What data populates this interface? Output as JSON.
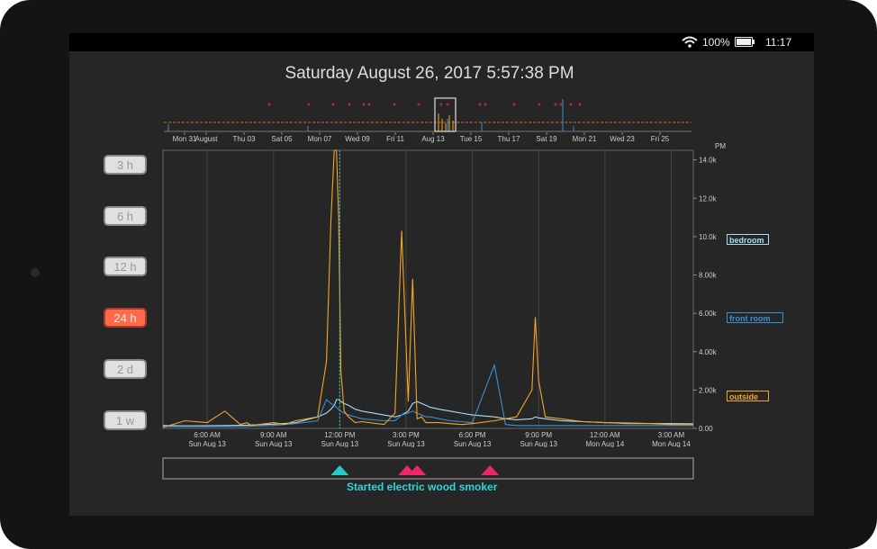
{
  "status_bar": {
    "battery": "100%",
    "battery_level": 1.0,
    "time": "11:17"
  },
  "datetime": "Saturday August 26, 2017   5:57:38 PM",
  "range_buttons": [
    {
      "label": "3 h",
      "active": false
    },
    {
      "label": "6 h",
      "active": false
    },
    {
      "label": "12 h",
      "active": false
    },
    {
      "label": "24 h",
      "active": true
    },
    {
      "label": "2 d",
      "active": false
    },
    {
      "label": "1 w",
      "active": false
    }
  ],
  "overview": {
    "tick_labels": [
      "Mon 31",
      "August",
      "Thu 03",
      "Sat 05",
      "Mon 07",
      "Wed 09",
      "Fri 11",
      "Aug 13",
      "Tue 15",
      "Thu 17",
      "Sat 19",
      "Mon 21",
      "Wed 23",
      "Fri 25"
    ],
    "event_marker": "*"
  },
  "chart_data": {
    "type": "line",
    "y_unit": "PM",
    "ylim": [
      0,
      14500
    ],
    "y_ticks": [
      "0.00",
      "2.00k",
      "4.00k",
      "6.00k",
      "8.00k",
      "10.0k",
      "12.0k",
      "14.0k"
    ],
    "x_ticks": [
      {
        "time": "6:00 AM",
        "date": "Sun Aug 13"
      },
      {
        "time": "9:00 AM",
        "date": "Sun Aug 13"
      },
      {
        "time": "12:00 PM",
        "date": "Sun Aug 13"
      },
      {
        "time": "3:00 PM",
        "date": "Sun Aug 13"
      },
      {
        "time": "6:00 PM",
        "date": "Sun Aug 13"
      },
      {
        "time": "9:00 PM",
        "date": "Sun Aug 13"
      },
      {
        "time": "12:00 AM",
        "date": "Mon Aug 14"
      },
      {
        "time": "3:00 AM",
        "date": "Mon Aug 14"
      }
    ],
    "x_hours": [
      4.0,
      5.0,
      6.0,
      6.8,
      7.5,
      7.8,
      8.0,
      9.0,
      9.5,
      10.0,
      11.0,
      11.4,
      11.6,
      11.75,
      11.85,
      11.95,
      12.05,
      12.2,
      12.4,
      12.7,
      13.0,
      14.0,
      14.5,
      14.8,
      15.1,
      15.3,
      15.5,
      15.7,
      15.9,
      16.1,
      16.5,
      17.0,
      17.5,
      18.0,
      19.0,
      19.5,
      20.0,
      20.7,
      20.85,
      21.0,
      21.3,
      22.0,
      23.0,
      24.0,
      25.0,
      26.0,
      27.0,
      28.0
    ],
    "series": [
      {
        "name": "bedroom",
        "color": "#a9dff6",
        "values": [
          150,
          130,
          140,
          150,
          160,
          170,
          180,
          220,
          260,
          300,
          600,
          800,
          1000,
          1200,
          1500,
          1500,
          1400,
          1300,
          1200,
          1000,
          900,
          700,
          600,
          700,
          900,
          1300,
          1400,
          1300,
          1200,
          1100,
          1000,
          900,
          800,
          700,
          600,
          500,
          450,
          500,
          600,
          550,
          500,
          400,
          350,
          300,
          280,
          260,
          250,
          240
        ]
      },
      {
        "name": "front room",
        "color": "#3b8fd4",
        "values": [
          100,
          100,
          100,
          100,
          100,
          100,
          120,
          150,
          200,
          250,
          400,
          1500,
          1300,
          1200,
          1100,
          1000,
          900,
          800,
          700,
          600,
          500,
          400,
          400,
          700,
          800,
          900,
          800,
          700,
          600,
          600,
          500,
          400,
          350,
          300,
          3300,
          200,
          150,
          150,
          150,
          150,
          150,
          150,
          150,
          150,
          150,
          150,
          150,
          150
        ]
      },
      {
        "name": "outside",
        "color": "#f5a623",
        "values": [
          50,
          400,
          300,
          900,
          200,
          300,
          150,
          300,
          200,
          400,
          600,
          3500,
          10800,
          14500,
          14500,
          11000,
          3000,
          900,
          600,
          300,
          350,
          200,
          800,
          10300,
          1400,
          7800,
          500,
          600,
          300,
          300,
          300,
          250,
          200,
          250,
          400,
          500,
          600,
          2000,
          5800,
          2500,
          600,
          500,
          350,
          300,
          250,
          250,
          200,
          200
        ]
      }
    ],
    "legend": [
      "bedroom",
      "front room",
      "outside"
    ],
    "events": [
      {
        "hour": 12.0,
        "color": "#27c9c9"
      },
      {
        "hour": 15.05,
        "color": "#f0266a"
      },
      {
        "hour": 15.5,
        "color": "#f0266a"
      },
      {
        "hour": 18.8,
        "color": "#f0266a"
      }
    ],
    "event_text": "Started electric wood smoker"
  },
  "colors": {
    "bedroom": "#a9dff6",
    "front_room": "#3b8fd4",
    "outside": "#f5a623",
    "event_pink": "#f0266a",
    "event_cyan": "#27c9c9",
    "accent_button": "#ff6a4d"
  }
}
